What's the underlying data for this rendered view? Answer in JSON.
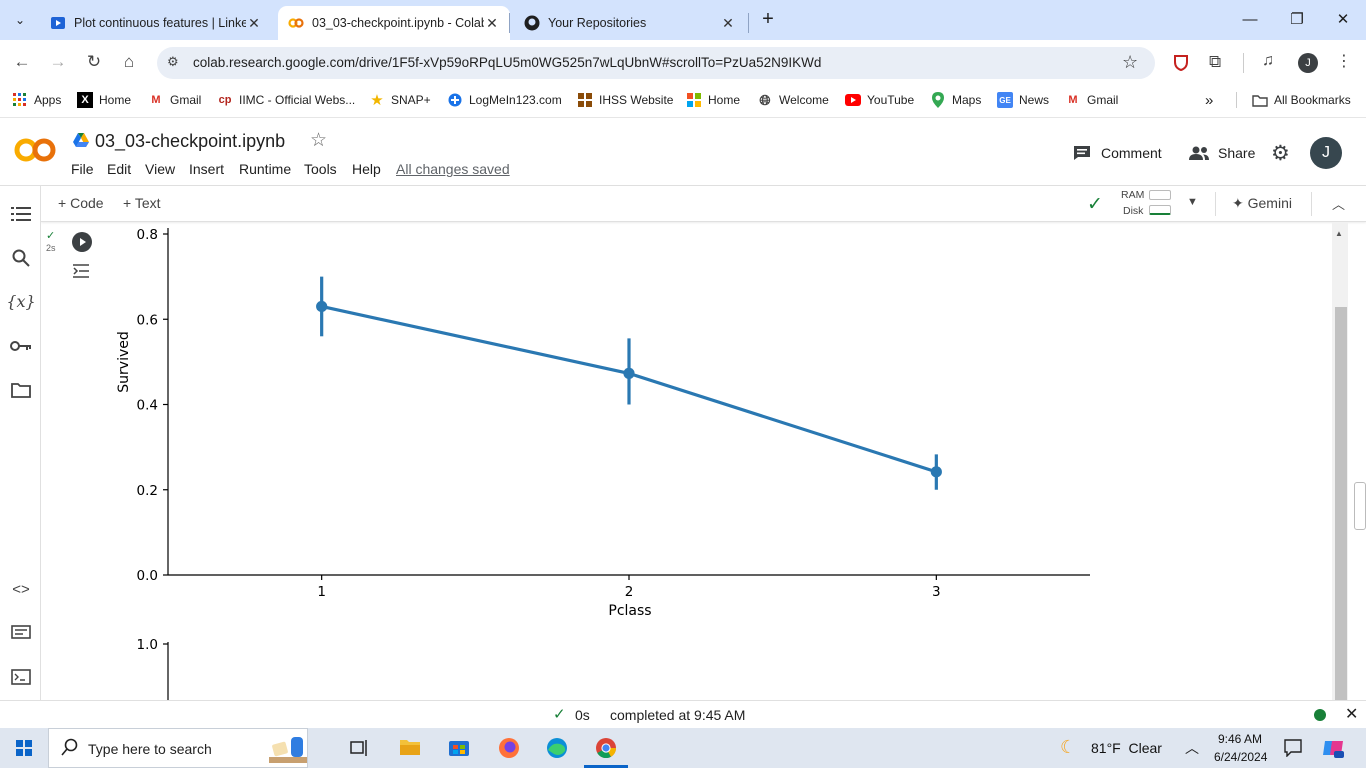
{
  "browser": {
    "tabs": [
      {
        "title": "Plot continuous features | Linke",
        "active": false
      },
      {
        "title": "03_03-checkpoint.ipynb - Colab",
        "active": true
      },
      {
        "title": "Your Repositories",
        "active": false
      }
    ],
    "new_tab_icon": "plus-icon",
    "url": "colab.research.google.com/drive/1F5f-xVp59oRPqLU5m0WG525n7wLqUbnW#scrollTo=PzUa52N9IKWd",
    "profile_initial": "J",
    "bookmarks": [
      {
        "label": "Apps"
      },
      {
        "label": "Home"
      },
      {
        "label": "Gmail"
      },
      {
        "label": "IIMC - Official Webs..."
      },
      {
        "label": "SNAP+"
      },
      {
        "label": "LogMeIn123.com"
      },
      {
        "label": "IHSS Website"
      },
      {
        "label": "Home"
      },
      {
        "label": "Welcome"
      },
      {
        "label": "YouTube"
      },
      {
        "label": "Maps"
      },
      {
        "label": "News"
      },
      {
        "label": "Gmail"
      }
    ],
    "bookmarks_overflow": "»",
    "all_bookmarks": "All Bookmarks"
  },
  "colab": {
    "logo": "CO",
    "notebook_title": "03_03-checkpoint.ipynb",
    "menu": [
      "File",
      "Edit",
      "View",
      "Insert",
      "Runtime",
      "Tools",
      "Help"
    ],
    "saved_status": "All changes saved",
    "comment_label": "Comment",
    "share_label": "Share",
    "avatar_initial": "J",
    "toolbar": {
      "code_label": "Code",
      "text_label": "Text",
      "ram_label": "RAM",
      "disk_label": "Disk",
      "gemini_label": "Gemini"
    },
    "cell": {
      "exec_time": "2s"
    },
    "status": {
      "time": "0s",
      "message": "completed at 9:45 AM"
    }
  },
  "chart_data": {
    "type": "line",
    "title": "",
    "xlabel": "Pclass",
    "ylabel": "Survived",
    "categories": [
      "1",
      "2",
      "3"
    ],
    "series": [
      {
        "values": [
          0.63,
          0.473,
          0.242
        ],
        "ci_low": [
          0.56,
          0.4,
          0.2
        ],
        "ci_high": [
          0.7,
          0.555,
          0.283
        ],
        "color": "#2a78b2"
      }
    ],
    "yticks": [
      "0.0",
      "0.2",
      "0.4",
      "0.6",
      "0.8"
    ],
    "ylim": [
      0.0,
      0.8
    ],
    "grid": false,
    "next_plot_ytick": "1.0"
  },
  "taskbar": {
    "search_placeholder": "Type here to search",
    "weather": "81°F  Clear",
    "time": "9:46 AM",
    "date": "6/24/2024"
  }
}
